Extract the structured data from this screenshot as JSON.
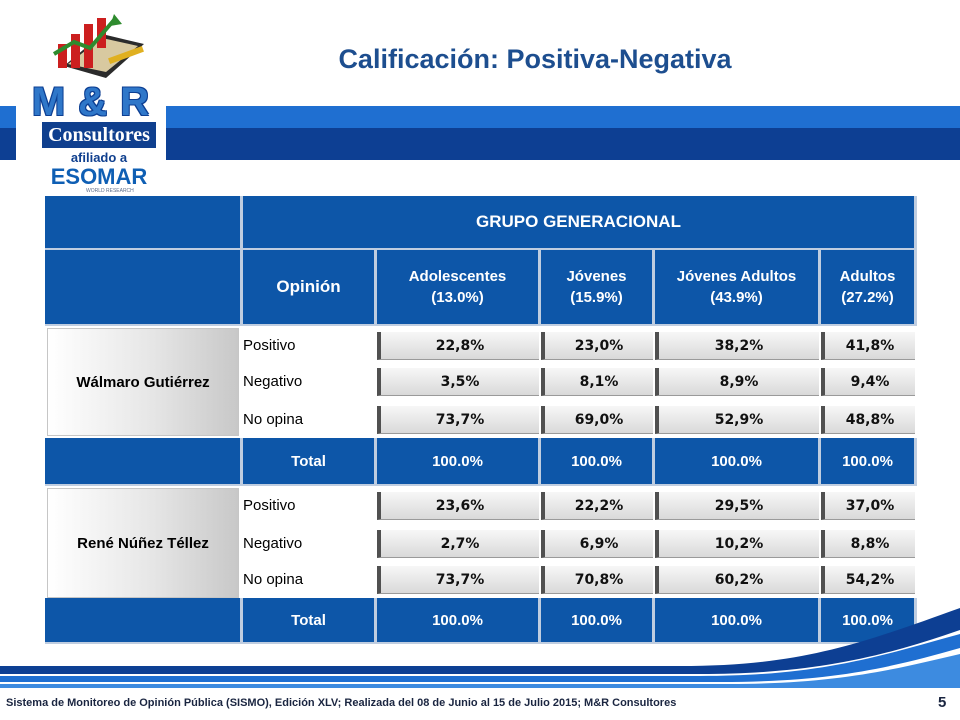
{
  "title": "Calificación: Positiva-Negativa",
  "logo": {
    "brand": "M & R",
    "name": "Consultores",
    "affiliated": "afiliado a",
    "association": "ESOMAR",
    "association_tagline": "WORLD RESEARCH"
  },
  "table": {
    "group_header": "GRUPO GENERACIONAL",
    "opinion_header": "Opinión",
    "columns": [
      {
        "name": "Adolescentes",
        "share": "(13.0%)"
      },
      {
        "name": "Jóvenes",
        "share": "(15.9%)"
      },
      {
        "name": "Jóvenes Adultos",
        "share": "(43.9%)"
      },
      {
        "name": "Adultos",
        "share": "(27.2%)"
      }
    ],
    "blocks": [
      {
        "candidate": "Wálmaro Gutiérrez",
        "rows": [
          {
            "label": "Positivo",
            "values": [
              "22,8%",
              "23,0%",
              "38,2%",
              "41,8%"
            ]
          },
          {
            "label": "Negativo",
            "values": [
              "3,5%",
              "8,1%",
              "8,9%",
              "9,4%"
            ]
          },
          {
            "label": "No opina",
            "values": [
              "73,7%",
              "69,0%",
              "52,9%",
              "48,8%"
            ]
          }
        ],
        "total_label": "Total",
        "totals": [
          "100.0%",
          "100.0%",
          "100.0%",
          "100.0%"
        ]
      },
      {
        "candidate": "René Núñez Téllez",
        "rows": [
          {
            "label": "Positivo",
            "values": [
              "23,6%",
              "22,2%",
              "29,5%",
              "37,0%"
            ]
          },
          {
            "label": "Negativo",
            "values": [
              "2,7%",
              "6,9%",
              "10,2%",
              "8,8%"
            ]
          },
          {
            "label": "No opina",
            "values": [
              "73,7%",
              "70,8%",
              "60,2%",
              "54,2%"
            ]
          }
        ],
        "total_label": "Total",
        "totals": [
          "100.0%",
          "100.0%",
          "100.0%",
          "100.0%"
        ]
      }
    ]
  },
  "footer": "Sistema de Monitoreo de Opinión Pública (SISMO), Edición XLV; Realizada del 08 de Junio al 15 de Julio 2015; M&R Consultores",
  "page_number": "5",
  "colors": {
    "primary_blue": "#0d56a8",
    "title_blue": "#1d4e8f",
    "band_dark": "#0d3f93"
  }
}
